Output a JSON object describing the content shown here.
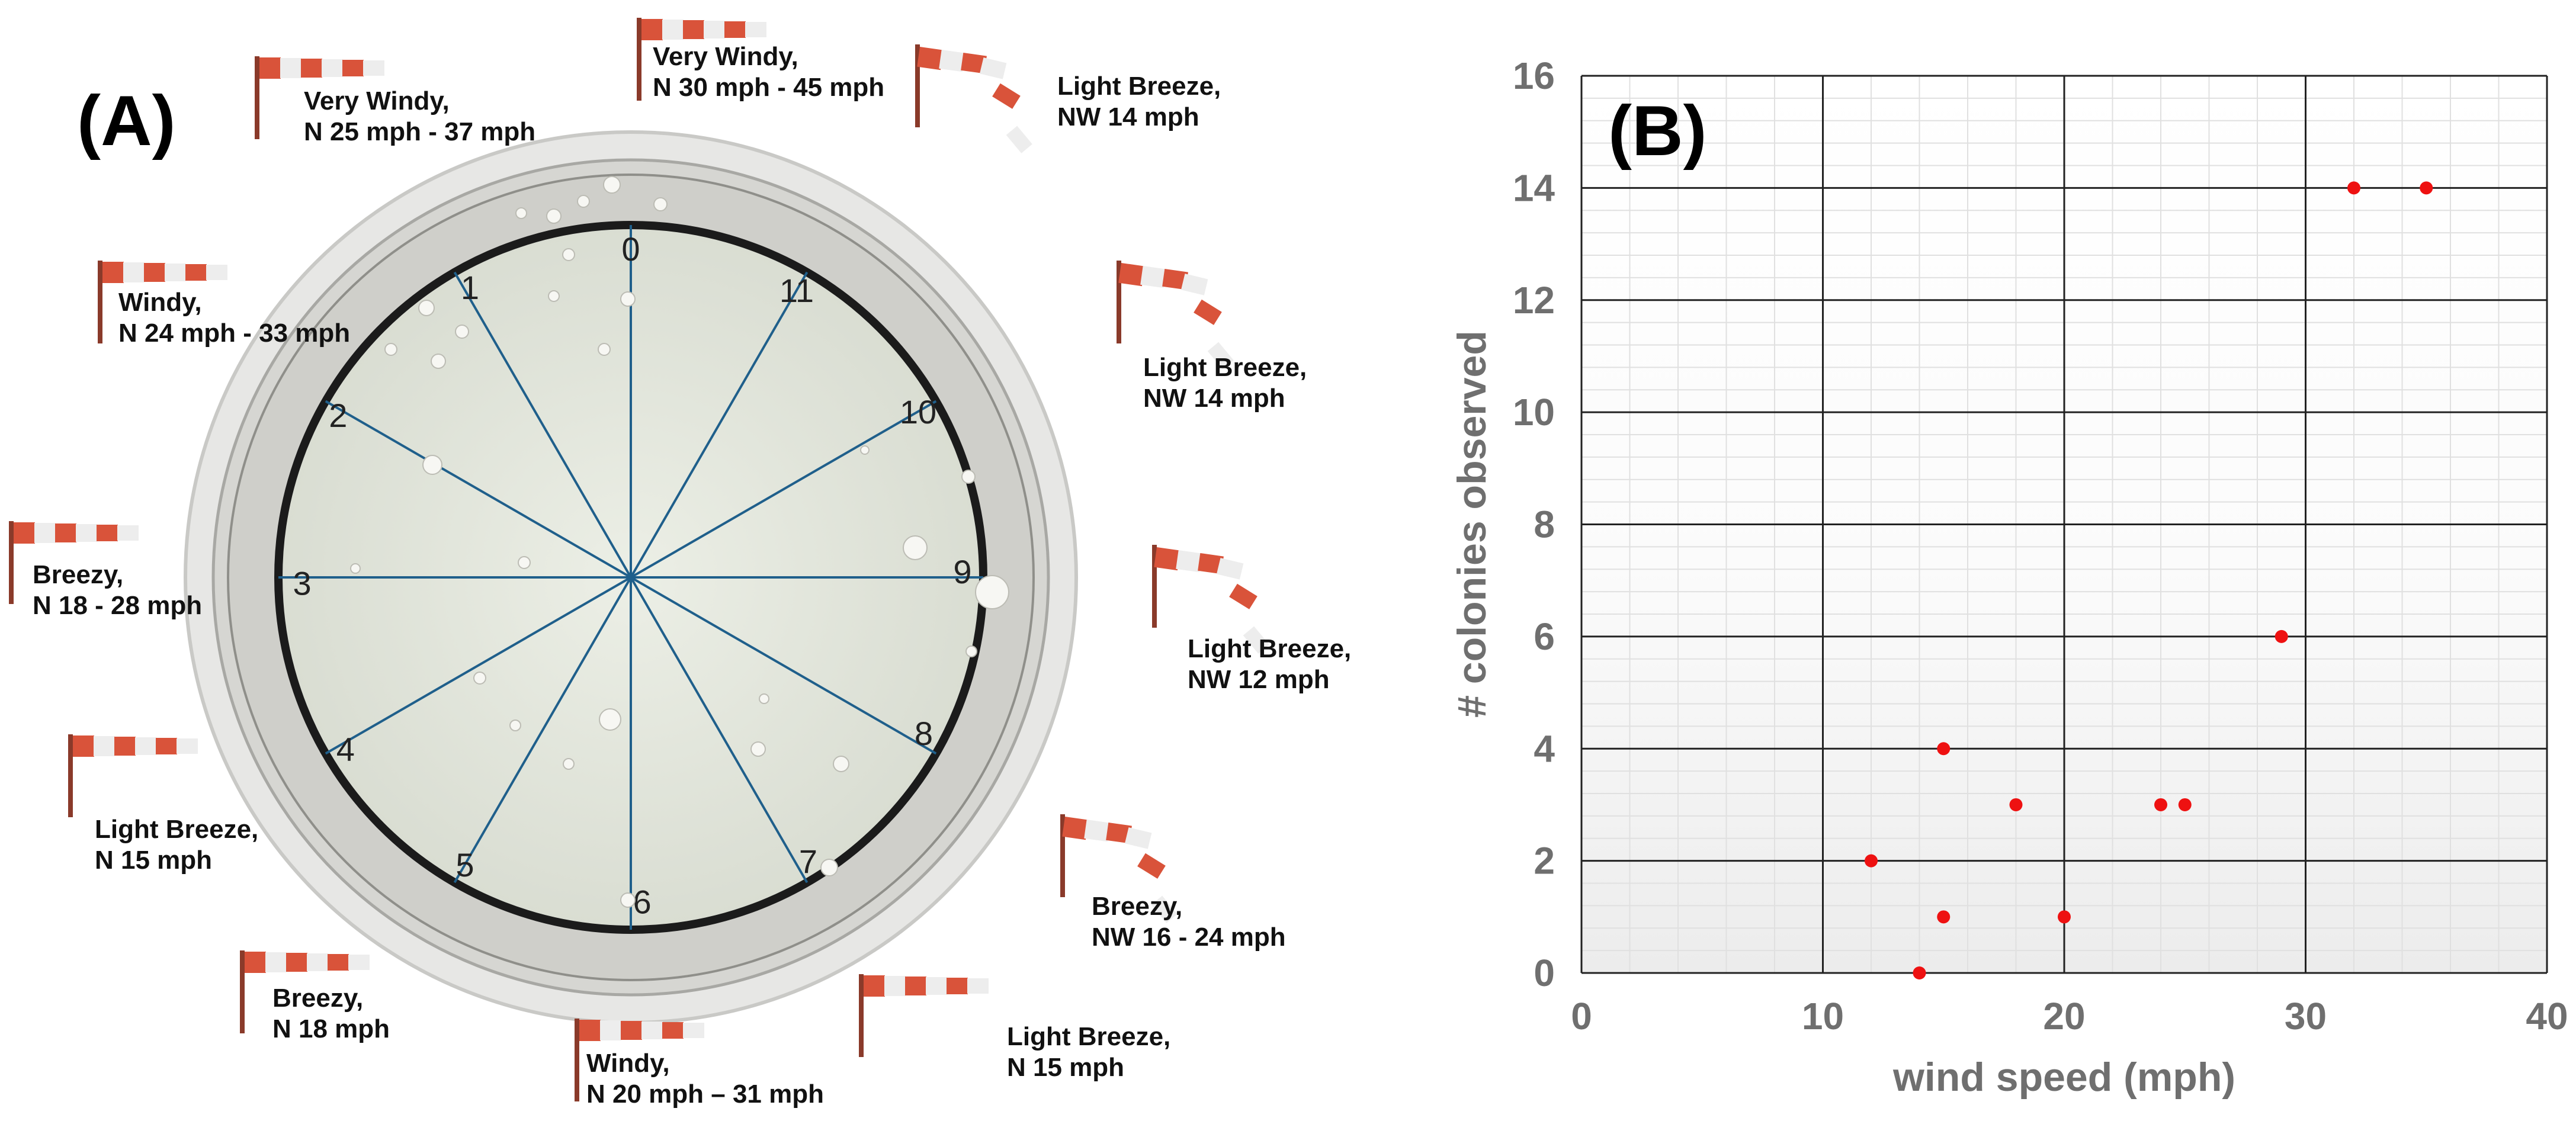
{
  "panel_a": {
    "label": "(A)",
    "sectors": [
      "0",
      "1",
      "2",
      "3",
      "4",
      "5",
      "6",
      "7",
      "8",
      "9",
      "10",
      "11"
    ],
    "windsocks": [
      {
        "line1": "Very Windy,",
        "line2": "N 30 mph - 45 mph",
        "direction": "N"
      },
      {
        "line1": "Light Breeze,",
        "line2": "NW 14 mph",
        "direction": "NW"
      },
      {
        "line1": "Light Breeze,",
        "line2": "NW 14 mph",
        "direction": "NW"
      },
      {
        "line1": "Light Breeze,",
        "line2": "NW 12 mph",
        "direction": "NW"
      },
      {
        "line1": "Breezy,",
        "line2": "NW 16 - 24 mph",
        "direction": "NW"
      },
      {
        "line1": "Light Breeze,",
        "line2": "N 15 mph",
        "direction": "N"
      },
      {
        "line1": "Windy,",
        "line2": "N 20 mph – 31 mph",
        "direction": "N"
      },
      {
        "line1": "Breezy,",
        "line2": "N 18 mph",
        "direction": "N"
      },
      {
        "line1": "Light Breeze,",
        "line2": "N 15 mph",
        "direction": "N"
      },
      {
        "line1": "Breezy,",
        "line2": "N 18 - 28 mph",
        "direction": "N"
      },
      {
        "line1": "Windy,",
        "line2": "N 24 mph - 33 mph",
        "direction": "N"
      },
      {
        "line1": "Very Windy,",
        "line2": "N 25 mph - 37 mph",
        "direction": "N"
      }
    ],
    "colors": {
      "sector_line": "#1f5f8b",
      "sock_red": "#d9533a",
      "sock_white": "#ededed",
      "dish_bg": "#e3e6dc"
    },
    "icons": [
      "windsock-icon",
      "petri-dish"
    ]
  },
  "chart_data": {
    "type": "scatter",
    "panel_label": "(B)",
    "xlabel": "wind speed (mph)",
    "ylabel": "# colonies observed",
    "xlim": [
      0,
      40
    ],
    "ylim": [
      0,
      16
    ],
    "xticks": [
      "0",
      "10",
      "20",
      "30",
      "40"
    ],
    "yticks": [
      "0",
      "2",
      "4",
      "6",
      "8",
      "10",
      "12",
      "14",
      "16"
    ],
    "grid": true,
    "points": [
      {
        "x": 14,
        "y": 0
      },
      {
        "x": 12,
        "y": 2
      },
      {
        "x": 15,
        "y": 1
      },
      {
        "x": 15,
        "y": 4
      },
      {
        "x": 18,
        "y": 3
      },
      {
        "x": 20,
        "y": 1
      },
      {
        "x": 24,
        "y": 3
      },
      {
        "x": 25,
        "y": 3
      },
      {
        "x": 29,
        "y": 6
      },
      {
        "x": 32,
        "y": 14
      },
      {
        "x": 35,
        "y": 14
      }
    ],
    "marker_color": "#ee1111",
    "grid_major_color": "#222222",
    "grid_minor_color": "#e0e0e0"
  }
}
